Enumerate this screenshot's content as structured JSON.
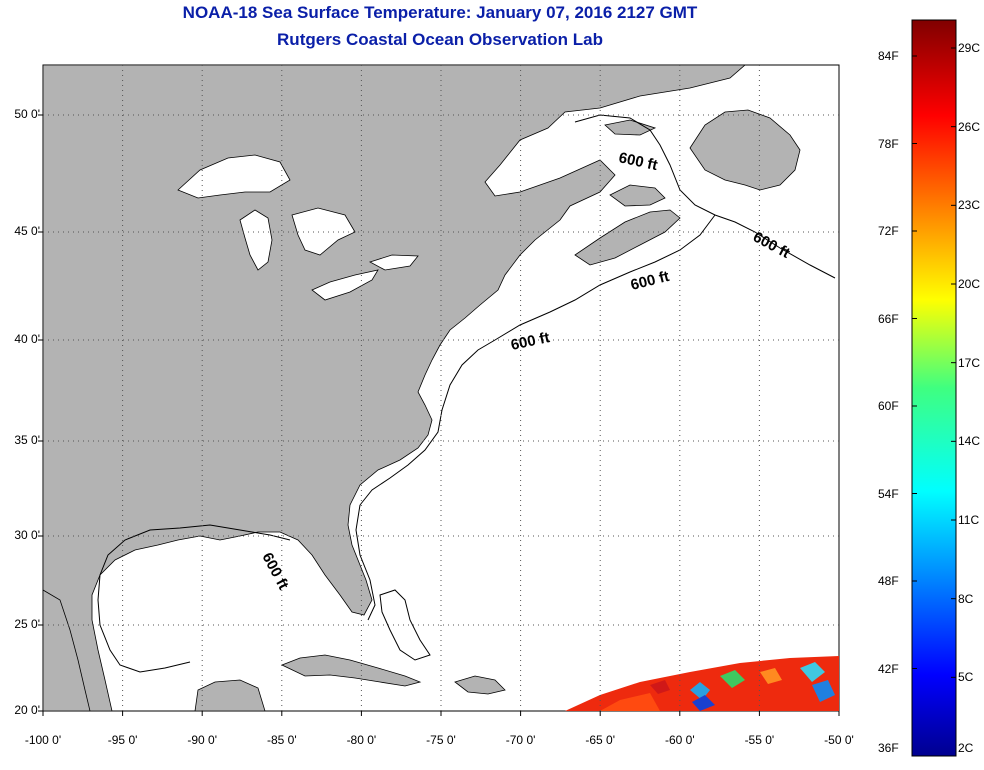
{
  "title": {
    "line1": "NOAA-18 Sea Surface Temperature:  January 07, 2016 2127 GMT",
    "line2": "Rutgers Coastal Ocean Observation Lab"
  },
  "map": {
    "lon_range": [
      -100,
      -50
    ],
    "lat_range": [
      20,
      52
    ],
    "grid": "dotted",
    "lat_ticks": [
      {
        "value": 50,
        "label": "50 0'"
      },
      {
        "value": 45,
        "label": "45 0'"
      },
      {
        "value": 40,
        "label": "40 0'"
      },
      {
        "value": 35,
        "label": "35 0'"
      },
      {
        "value": 30,
        "label": "30 0'"
      },
      {
        "value": 25,
        "label": "25 0'"
      },
      {
        "value": 20,
        "label": "20 0'"
      }
    ],
    "lon_ticks": [
      {
        "value": -100,
        "label": "-100 0'"
      },
      {
        "value": -95,
        "label": "-95 0'"
      },
      {
        "value": -90,
        "label": "-90 0'"
      },
      {
        "value": -85,
        "label": "-85 0'"
      },
      {
        "value": -80,
        "label": "-80 0'"
      },
      {
        "value": -75,
        "label": "-75 0'"
      },
      {
        "value": -70,
        "label": "-70 0'"
      },
      {
        "value": -65,
        "label": "-65 0'"
      },
      {
        "value": -60,
        "label": "-60 0'"
      },
      {
        "value": -55,
        "label": "-55 0'"
      },
      {
        "value": -50,
        "label": "-50 0'"
      }
    ],
    "contour_labels": [
      "600 ft",
      "600 ft",
      "600 ft",
      "600 ft",
      "600 ft"
    ],
    "land_color": "#b3b3b3",
    "ocean_color": "#ffffff"
  },
  "colorbar": {
    "fahrenheit": [
      "84F",
      "78F",
      "72F",
      "66F",
      "60F",
      "54F",
      "48F",
      "42F",
      "36F"
    ],
    "celsius": [
      "29C",
      "26C",
      "23C",
      "20C",
      "17C",
      "14C",
      "11C",
      "8C",
      "5C",
      "2C"
    ]
  }
}
